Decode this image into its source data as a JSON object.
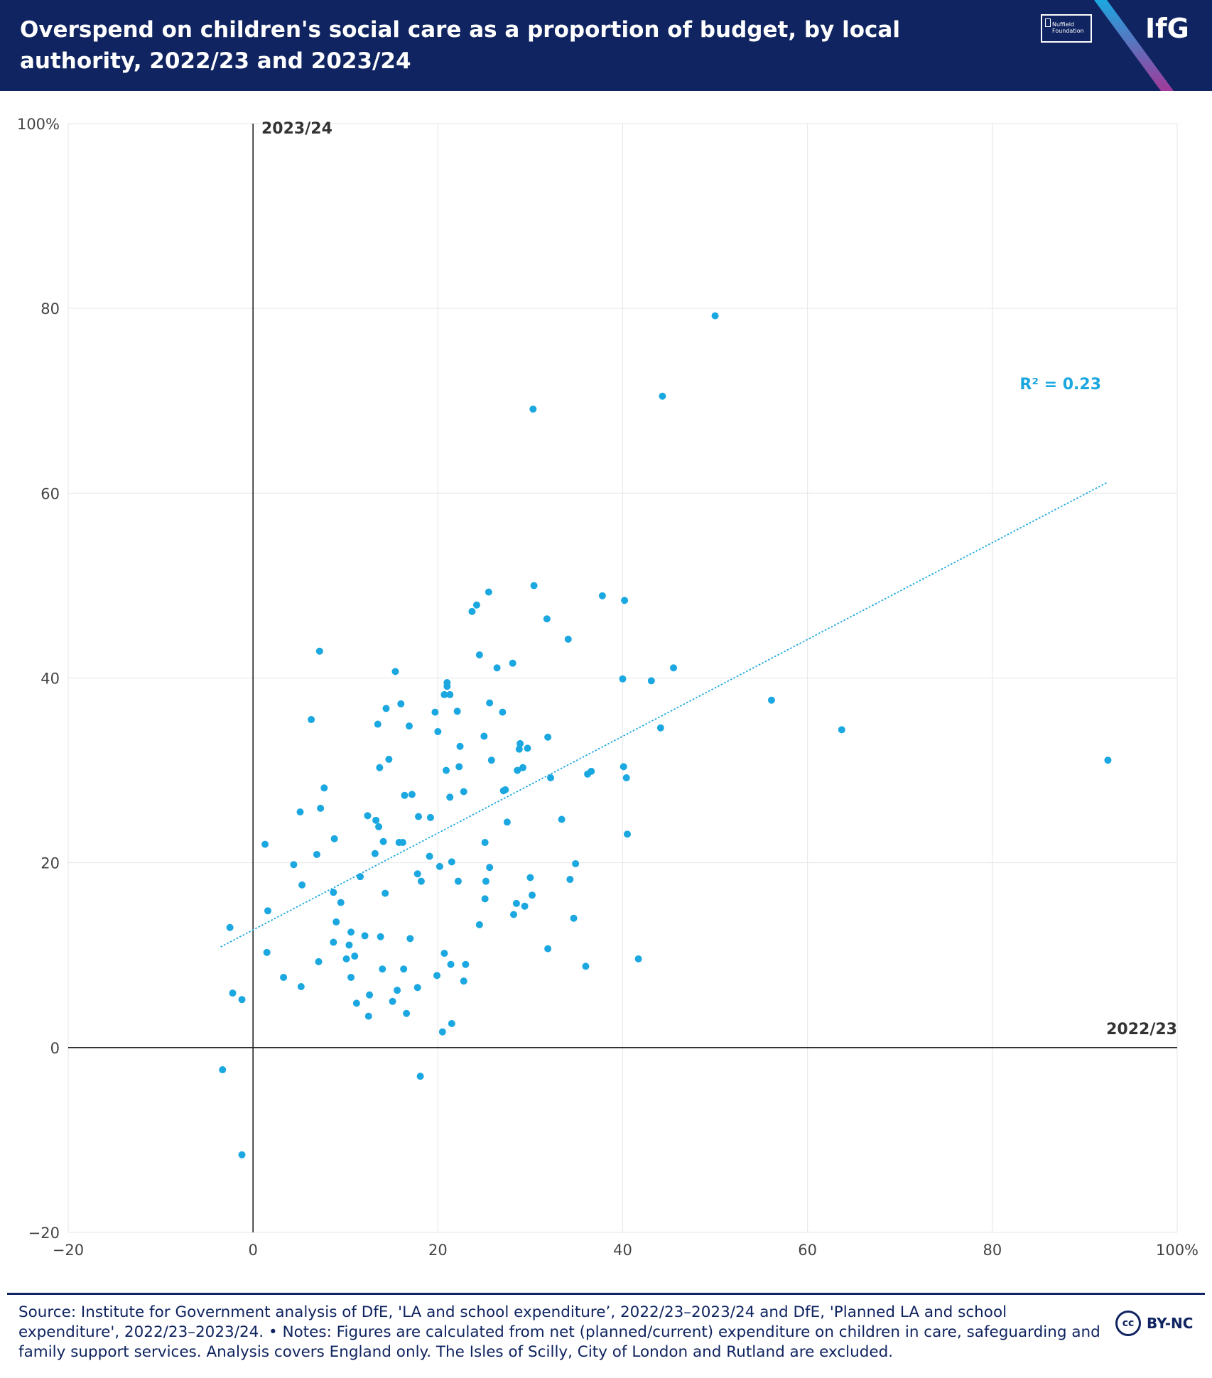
{
  "header": {
    "title": "Overspend on children's social care as a proportion of budget, by local authority, 2022/23 and 2023/24",
    "nuffield_logo_text": "Nuffield Foundation",
    "brand_logo_text": "IfG",
    "background_color": "#0f2460"
  },
  "chart_data": {
    "type": "scatter",
    "title": "Overspend on children's social care as a proportion of budget, by local authority, 2022/23 and 2023/24",
    "xlabel": "2022/23",
    "ylabel": "2023/24",
    "xlim": [
      -20,
      100
    ],
    "ylim": [
      -20,
      100
    ],
    "x_ticks": [
      "−20",
      "0",
      "20",
      "40",
      "60",
      "80",
      "100%"
    ],
    "y_ticks": [
      "−20",
      "0",
      "20",
      "40",
      "60",
      "80",
      "100%"
    ],
    "grid": true,
    "point_color": "#1ba7e0",
    "trendline": {
      "type": "linear",
      "x": [
        -3.5,
        92.5
      ],
      "y": [
        10.9,
        61.2
      ],
      "label": "R² = 0.23",
      "style": "dotted"
    },
    "series": [
      {
        "points": [
          [
            -2.5,
            13.0
          ],
          [
            -2.2,
            5.9
          ],
          [
            -1.2,
            5.2
          ],
          [
            -3.3,
            -2.4
          ],
          [
            -1.2,
            -11.6
          ],
          [
            1.3,
            22.0
          ],
          [
            1.6,
            14.8
          ],
          [
            1.5,
            10.3
          ],
          [
            3.3,
            7.6
          ],
          [
            4.4,
            19.8
          ],
          [
            5.1,
            25.5
          ],
          [
            5.3,
            17.6
          ],
          [
            5.2,
            6.6
          ],
          [
            6.3,
            35.5
          ],
          [
            7.2,
            42.9
          ],
          [
            7.3,
            25.9
          ],
          [
            7.7,
            28.1
          ],
          [
            6.9,
            20.9
          ],
          [
            7.1,
            9.3
          ],
          [
            8.8,
            22.6
          ],
          [
            8.7,
            16.8
          ],
          [
            9.0,
            13.6
          ],
          [
            8.7,
            11.4
          ],
          [
            9.5,
            15.7
          ],
          [
            10.4,
            11.1
          ],
          [
            10.6,
            12.5
          ],
          [
            10.1,
            9.6
          ],
          [
            10.6,
            7.6
          ],
          [
            11.0,
            9.9
          ],
          [
            11.2,
            4.8
          ],
          [
            11.6,
            18.5
          ],
          [
            12.1,
            12.1
          ],
          [
            12.4,
            25.1
          ],
          [
            12.6,
            5.7
          ],
          [
            12.5,
            3.4
          ],
          [
            13.2,
            21.0
          ],
          [
            13.3,
            24.6
          ],
          [
            13.5,
            35.0
          ],
          [
            13.6,
            23.9
          ],
          [
            13.7,
            30.3
          ],
          [
            13.8,
            12.0
          ],
          [
            14.0,
            8.5
          ],
          [
            14.1,
            22.3
          ],
          [
            14.4,
            36.7
          ],
          [
            14.7,
            31.2
          ],
          [
            14.3,
            16.7
          ],
          [
            15.1,
            5.0
          ],
          [
            15.4,
            40.7
          ],
          [
            15.6,
            6.2
          ],
          [
            15.8,
            22.2
          ],
          [
            16.0,
            37.2
          ],
          [
            16.2,
            22.2
          ],
          [
            16.3,
            8.5
          ],
          [
            16.4,
            27.3
          ],
          [
            16.6,
            3.7
          ],
          [
            16.9,
            34.8
          ],
          [
            17.2,
            27.4
          ],
          [
            17.0,
            11.8
          ],
          [
            17.8,
            18.8
          ],
          [
            17.8,
            6.5
          ],
          [
            17.9,
            25.0
          ],
          [
            18.2,
            18.0
          ],
          [
            18.1,
            -3.1
          ],
          [
            19.1,
            20.7
          ],
          [
            19.2,
            24.9
          ],
          [
            19.7,
            36.3
          ],
          [
            19.9,
            7.8
          ],
          [
            20.0,
            34.2
          ],
          [
            20.2,
            19.6
          ],
          [
            20.5,
            1.7
          ],
          [
            20.7,
            10.2
          ],
          [
            20.7,
            38.2
          ],
          [
            21.0,
            39.5
          ],
          [
            21.0,
            39.1
          ],
          [
            20.9,
            30.0
          ],
          [
            21.3,
            38.2
          ],
          [
            21.3,
            27.1
          ],
          [
            21.4,
            9.0
          ],
          [
            21.5,
            20.1
          ],
          [
            21.5,
            2.6
          ],
          [
            22.1,
            36.4
          ],
          [
            22.2,
            18.0
          ],
          [
            22.3,
            30.4
          ],
          [
            22.4,
            32.6
          ],
          [
            22.8,
            27.7
          ],
          [
            22.8,
            7.2
          ],
          [
            23.0,
            9.0
          ],
          [
            23.7,
            47.2
          ],
          [
            24.2,
            47.9
          ],
          [
            24.5,
            42.5
          ],
          [
            24.5,
            13.3
          ],
          [
            25.0,
            33.7
          ],
          [
            25.1,
            22.2
          ],
          [
            25.1,
            16.1
          ],
          [
            25.2,
            18.0
          ],
          [
            25.5,
            49.3
          ],
          [
            25.6,
            37.3
          ],
          [
            25.6,
            19.5
          ],
          [
            25.8,
            31.1
          ],
          [
            26.4,
            41.1
          ],
          [
            27.0,
            36.3
          ],
          [
            27.1,
            27.8
          ],
          [
            27.3,
            27.9
          ],
          [
            27.5,
            24.4
          ],
          [
            28.1,
            41.6
          ],
          [
            28.2,
            14.4
          ],
          [
            28.5,
            15.6
          ],
          [
            28.6,
            30.0
          ],
          [
            28.8,
            32.3
          ],
          [
            28.9,
            32.9
          ],
          [
            29.2,
            30.3
          ],
          [
            29.4,
            15.3
          ],
          [
            29.7,
            32.4
          ],
          [
            30.0,
            18.4
          ],
          [
            30.2,
            16.5
          ],
          [
            30.3,
            69.1
          ],
          [
            30.4,
            50.0
          ],
          [
            31.8,
            46.4
          ],
          [
            31.9,
            33.6
          ],
          [
            31.9,
            10.7
          ],
          [
            32.2,
            29.2
          ],
          [
            33.4,
            24.7
          ],
          [
            34.1,
            44.2
          ],
          [
            34.3,
            18.2
          ],
          [
            34.7,
            14.0
          ],
          [
            34.9,
            19.9
          ],
          [
            36.0,
            8.8
          ],
          [
            36.2,
            29.6
          ],
          [
            36.6,
            29.9
          ],
          [
            37.8,
            48.9
          ],
          [
            40.0,
            39.9
          ],
          [
            40.1,
            30.4
          ],
          [
            40.2,
            48.4
          ],
          [
            40.4,
            29.2
          ],
          [
            40.5,
            23.1
          ],
          [
            41.7,
            9.6
          ],
          [
            43.1,
            39.7
          ],
          [
            44.1,
            34.6
          ],
          [
            44.3,
            70.5
          ],
          [
            45.5,
            41.1
          ],
          [
            50.0,
            79.2
          ],
          [
            56.1,
            37.6
          ],
          [
            63.7,
            34.4
          ],
          [
            92.5,
            31.1
          ]
        ]
      }
    ]
  },
  "footer": {
    "source_text": "Source: Institute for Government analysis of DfE, 'LA and school expenditure’, 2022/23–2023/24 and DfE, 'Planned LA and school expenditure', 2022/23–2023/24. • Notes: Figures are calculated from net (planned/current) expenditure on children in care, safeguarding and family support services. Analysis covers England only. The Isles of Scilly, City of London and Rutland are excluded.",
    "license_icon_text": "cc",
    "license_text": "BY-NC"
  }
}
